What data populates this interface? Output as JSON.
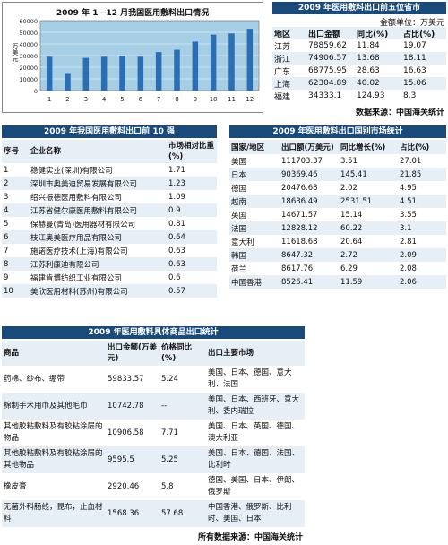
{
  "chart_data": {
    "type": "bar",
    "title": "2009 年 1—12 月我国医用敷料出口情况",
    "ylabel": "万美元",
    "categories": [
      "1",
      "2",
      "3",
      "4",
      "5",
      "6",
      "7",
      "8",
      "9",
      "10",
      "11",
      "12"
    ],
    "values": [
      29000,
      15000,
      28000,
      29000,
      30000,
      29000,
      33000,
      35000,
      42000,
      48000,
      49000,
      53000
    ],
    "ylim": [
      0,
      60000
    ],
    "yticks": [
      "0",
      "10000",
      "20000",
      "30000",
      "40000",
      "50000",
      "60000"
    ],
    "grid": true,
    "bar_color": "#2a6fb5",
    "plot_bg": "#a6cfe6"
  },
  "province_table": {
    "title": "2009 年医用敷料出口前五位省市",
    "unit": "金额单位：万美元",
    "headers": [
      "地区",
      "出口金额",
      "同比(%)",
      "占比(%)"
    ],
    "rows": [
      [
        "江苏",
        "78859.62",
        "11.84",
        "19.07"
      ],
      [
        "浙江",
        "74906.57",
        "13.68",
        "18.11"
      ],
      [
        "广东",
        "68775.95",
        "28.63",
        "16.63"
      ],
      [
        "上海",
        "62304.89",
        "40.02",
        "15.06"
      ],
      [
        "福建",
        "34333.1",
        "124.93",
        "8.3"
      ]
    ],
    "source": "数据来源：中国海关统计"
  },
  "company_table": {
    "title": "2009 年我国医用敷料出口前 10 强",
    "headers": [
      "序号",
      "企业名称",
      "市场相对比重(%)"
    ],
    "rows": [
      [
        "1",
        "稳健实业(深圳)有限公司",
        "1.71"
      ],
      [
        "2",
        "深圳市奥美迪贸易发展有限公司",
        "1.23"
      ],
      [
        "3",
        "绍兴振德医用敷料有限公司",
        "1.09"
      ],
      [
        "4",
        "江苏省健尔康医用敷料有限公司",
        "0.9"
      ],
      [
        "5",
        "保赫曼(青岛)医用器材有限公司",
        "0.81"
      ],
      [
        "6",
        "枝江奥美医疗用品有限公司",
        "0.64"
      ],
      [
        "7",
        "施诺医疗技术(上海)有限公司",
        "0.63"
      ],
      [
        "8",
        "江苏利康迪有限公司",
        "0.63"
      ],
      [
        "9",
        "福建肯博纺织工业有限公司",
        "0.6"
      ],
      [
        "10",
        "美欣医用材料(苏州)有限公司",
        "0.57"
      ]
    ]
  },
  "country_table": {
    "title": "2009 年医用敷料出口国别市场统计",
    "headers": [
      "国家/地区",
      "出口额(万美元)",
      "同比增长(%)",
      "占比(%)"
    ],
    "rows": [
      [
        "美国",
        "111703.37",
        "3.51",
        "27.01"
      ],
      [
        "日本",
        "90369.46",
        "145.41",
        "21.85"
      ],
      [
        "德国",
        "20476.68",
        "2.02",
        "4.95"
      ],
      [
        "越南",
        "18636.49",
        "2531.51",
        "4.51"
      ],
      [
        "英国",
        "14671.57",
        "15.14",
        "3.55"
      ],
      [
        "法国",
        "12828.12",
        "60.22",
        "3.1"
      ],
      [
        "意大利",
        "11618.68",
        "20.64",
        "2.81"
      ],
      [
        "韩国",
        "8647.32",
        "2.72",
        "2.09"
      ],
      [
        "荷兰",
        "8617.76",
        "6.29",
        "2.08"
      ],
      [
        "中国香港",
        "8526.41",
        "11.59",
        "2.06"
      ]
    ]
  },
  "product_table": {
    "title": "2009 年医用敷料具体商品出口统计",
    "headers": [
      "商品",
      "出口金额(万美元)",
      "价格同比(%)",
      "出口主要市场"
    ],
    "rows": [
      [
        "药棉、纱布、绷带",
        "59833.57",
        "5.24",
        "美国、日本、德国、意大利、法国"
      ],
      [
        "棉制手术用巾及其他毛巾",
        "10742.78",
        "--",
        "美国、日本、西班牙、意大利、委内瑞拉"
      ],
      [
        "其他胶粘敷料及有胶粘涂层的物品",
        "10906.58",
        "7.71",
        "美国、日本、英国、德国、澳大利亚"
      ],
      [
        "其他胶粘敷料及有胶粘涂层的其他物品",
        "9595.5",
        "5.25",
        "美国、日本、德国、法国、比利时"
      ],
      [
        "橡皮膏",
        "2920.46",
        "5.8",
        "德国、美国、日本、伊朗、俄罗斯"
      ],
      [
        "无菌外科肠线，昆布，止血材料",
        "1568.36",
        "57.68",
        "中国香港、俄罗斯、比利时、美国、日本"
      ]
    ],
    "source": "所有数据来源：中国海关统计"
  }
}
